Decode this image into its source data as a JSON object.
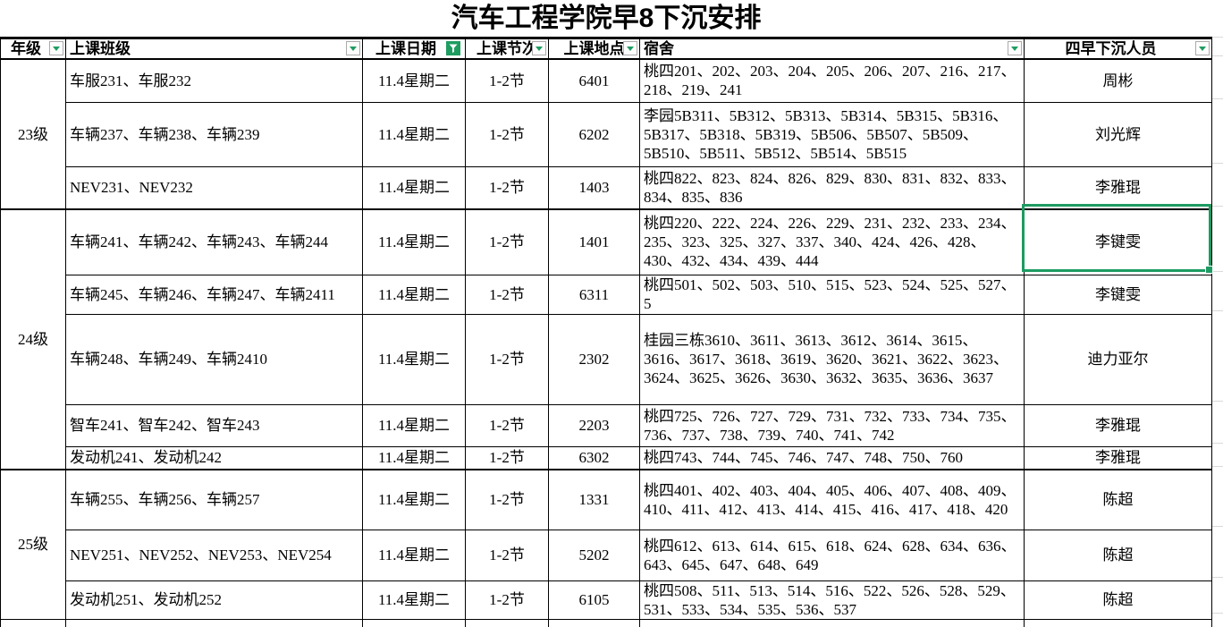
{
  "title": "汽车工程学院早8下沉安排",
  "colors": {
    "selection_green": "#1e9b62",
    "filter_active_green": "#1f9d61",
    "filter_arrow_green": "#1f9d61",
    "gridline_gray": "#d9d9d9",
    "border_black": "#000000",
    "background": "#ffffff"
  },
  "columns": [
    {
      "label": "年级",
      "filter": "dropdown"
    },
    {
      "label": "上课班级",
      "filter": "dropdown"
    },
    {
      "label": "上课日期",
      "filter": "active-funnel"
    },
    {
      "label": "上课节次",
      "filter": "dropdown"
    },
    {
      "label": "上课地点",
      "filter": "dropdown"
    },
    {
      "label": "宿舍",
      "filter": "dropdown"
    },
    {
      "label": "四早下沉人员",
      "filter": "dropdown"
    }
  ],
  "groups": [
    {
      "grade": "23级",
      "rows": [
        {
          "classes": "车服231、车服232",
          "date": "11.4星期二",
          "period": "1-2节",
          "location": "6401",
          "dorm": "桃四201、202、203、204、205、206、207、216、217、218、219、241",
          "person": "周彬"
        },
        {
          "classes": "车辆237、车辆238、车辆239",
          "date": "11.4星期二",
          "period": "1-2节",
          "location": "6202",
          "dorm": "李园5B311、5B312、5B313、5B314、5B315、5B316、5B317、5B318、5B319、5B506、5B507、5B509、5B510、5B511、5B512、5B514、5B515",
          "person": "刘光辉"
        },
        {
          "classes": "NEV231、NEV232",
          "date": "11.4星期二",
          "period": "1-2节",
          "location": "1403",
          "dorm": "桃四822、823、824、826、829、830、831、832、833、834、835、836",
          "person": "李雅琨"
        }
      ]
    },
    {
      "grade": "24级",
      "rows": [
        {
          "classes": "车辆241、车辆242、车辆243、车辆244",
          "date": "11.4星期二",
          "period": "1-2节",
          "location": "1401",
          "dorm": "桃四220、222、224、226、229、231、232、233、234、235、323、325、327、337、340、424、426、428、430、432、434、439、444",
          "person": "李键雯"
        },
        {
          "classes": "车辆245、车辆246、车辆247、车辆2411",
          "date": "11.4星期二",
          "period": "1-2节",
          "location": "6311",
          "dorm": "桃四501、502、503、510、515、523、524、525、527、5",
          "person": "李键雯"
        },
        {
          "classes": "车辆248、车辆249、车辆2410",
          "date": "11.4星期二",
          "period": "1-2节",
          "location": "2302",
          "dorm": "桂园三栋3610、3611、3613、3612、3614、3615、3616、3617、3618、3619、3620、3621、3622、3623、3624、3625、3626、3630、3632、3635、3636、3637",
          "person": "迪力亚尔"
        },
        {
          "classes": "智车241、智车242、智车243",
          "date": "11.4星期二",
          "period": "1-2节",
          "location": "2203",
          "dorm": "桃四725、726、727、729、731、732、733、734、735、736、737、738、739、740、741、742",
          "person": "李雅琨"
        },
        {
          "classes": "发动机241、发动机242",
          "date": "11.4星期二",
          "period": "1-2节",
          "location": "6302",
          "dorm": "桃四743、744、745、746、747、748、750、760",
          "person": "李雅琨"
        }
      ]
    },
    {
      "grade": "25级",
      "rows": [
        {
          "classes": "车辆255、车辆256、车辆257",
          "date": "11.4星期二",
          "period": "1-2节",
          "location": "1331",
          "dorm": "桃四401、402、403、404、405、406、407、408、409、410、411、412、413、414、415、416、417、418、420",
          "person": "陈超"
        },
        {
          "classes": "NEV251、NEV252、NEV253、NEV254",
          "date": "11.4星期二",
          "period": "1-2节",
          "location": "5202",
          "dorm": "桃四612、613、614、615、618、624、628、634、636、643、645、647、648、649",
          "person": "陈超"
        },
        {
          "classes": "发动机251、发动机252",
          "date": "11.4星期二",
          "period": "1-2节",
          "location": "6105",
          "dorm": "桃四508、511、513、514、516、522、526、528、529、531、533、534、535、536、537",
          "person": "陈超"
        }
      ]
    }
  ],
  "selection": {
    "row_index": 3,
    "column": "person"
  }
}
